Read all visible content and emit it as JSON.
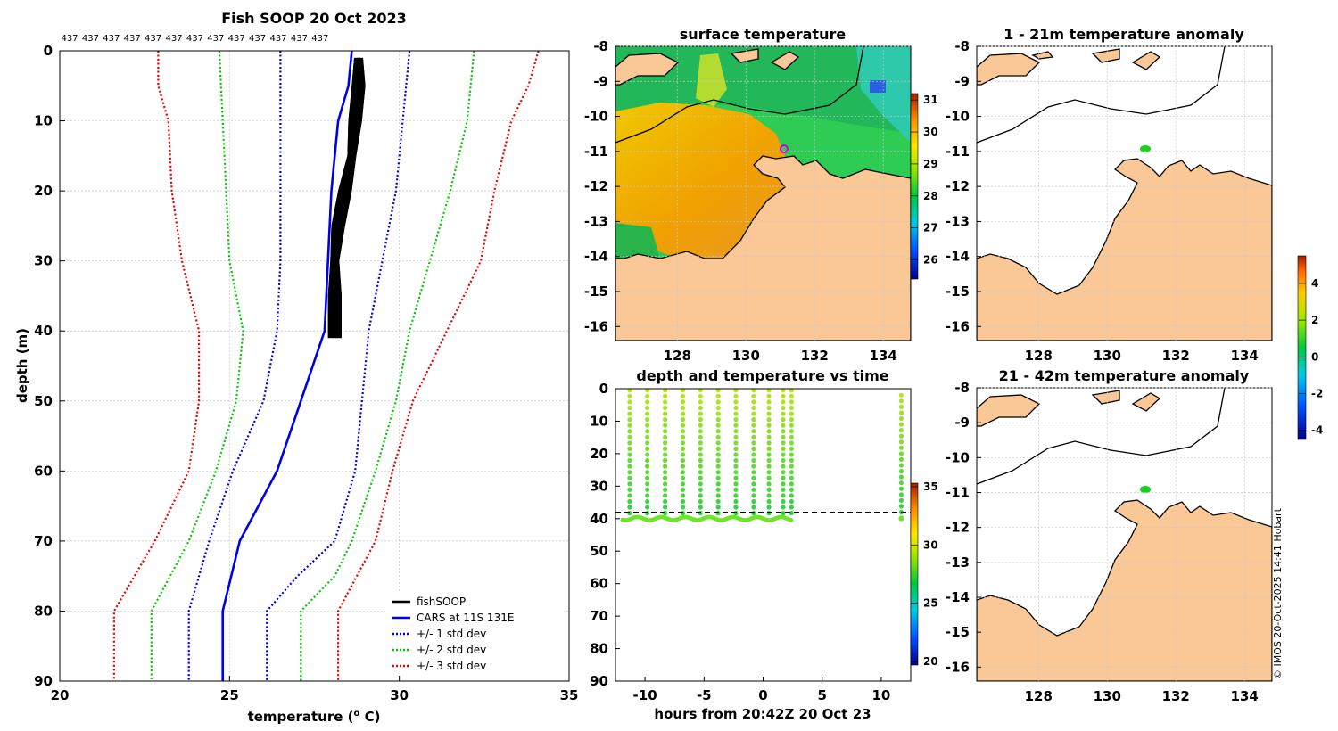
{
  "chart_data": [
    {
      "type": "line",
      "title": "Fish SOOP 20 Oct 2023",
      "xlabel": "temperature (",
      "xlabel_sup": "o",
      "xlabel_end": " C)",
      "ylabel": "depth (m)",
      "xlim": [
        20,
        35
      ],
      "ylim": [
        90,
        0
      ],
      "xticks": [
        "20",
        "25",
        "30",
        "35"
      ],
      "yticks": [
        "0",
        "10",
        "20",
        "30",
        "40",
        "50",
        "60",
        "70",
        "80",
        "90"
      ],
      "top_counts": [
        "437",
        "437",
        "437",
        "437",
        "437",
        "437",
        "437",
        "437",
        "437",
        "437",
        "437",
        "437",
        "437"
      ],
      "legend": [
        "fishSOOP",
        "CARS at 11S 131E",
        "+/- 1 std dev",
        "+/- 2 std dev",
        "+/- 3 std dev"
      ],
      "series": [
        {
          "name": "CARS at 11S 131E",
          "color": "#0000e6",
          "style": "solid",
          "points": [
            [
              28.6,
              0
            ],
            [
              28.5,
              5
            ],
            [
              28.2,
              10
            ],
            [
              28.0,
              20
            ],
            [
              27.9,
              30
            ],
            [
              27.8,
              40
            ],
            [
              27.1,
              50
            ],
            [
              26.4,
              60
            ],
            [
              25.3,
              70
            ],
            [
              24.8,
              80
            ],
            [
              24.8,
              90
            ]
          ]
        },
        {
          "name": "+1 std dev",
          "color": "#0000e6",
          "style": "dot",
          "points": [
            [
              30.3,
              0
            ],
            [
              30.1,
              10
            ],
            [
              29.9,
              20
            ],
            [
              29.5,
              30
            ],
            [
              29.1,
              40
            ],
            [
              28.9,
              50
            ],
            [
              28.7,
              60
            ],
            [
              28.1,
              70
            ],
            [
              27.0,
              75
            ],
            [
              26.1,
              80
            ],
            [
              26.1,
              90
            ]
          ]
        },
        {
          "name": "-1 std dev",
          "color": "#0000e6",
          "style": "dot",
          "points": [
            [
              26.5,
              0
            ],
            [
              26.5,
              10
            ],
            [
              26.5,
              20
            ],
            [
              26.5,
              30
            ],
            [
              26.4,
              40
            ],
            [
              26.0,
              50
            ],
            [
              25.1,
              60
            ],
            [
              24.4,
              70
            ],
            [
              23.8,
              80
            ],
            [
              23.8,
              90
            ]
          ]
        },
        {
          "name": "+2 std dev",
          "color": "#00c800",
          "style": "dot",
          "points": [
            [
              32.2,
              0
            ],
            [
              32.0,
              10
            ],
            [
              31.5,
              20
            ],
            [
              30.9,
              30
            ],
            [
              30.3,
              40
            ],
            [
              29.9,
              50
            ],
            [
              29.3,
              60
            ],
            [
              28.6,
              70
            ],
            [
              28.1,
              75
            ],
            [
              27.1,
              80
            ],
            [
              27.1,
              90
            ]
          ]
        },
        {
          "name": "-2 std dev",
          "color": "#00c800",
          "style": "dot",
          "points": [
            [
              24.7,
              0
            ],
            [
              24.8,
              10
            ],
            [
              24.9,
              20
            ],
            [
              25.0,
              30
            ],
            [
              25.4,
              40
            ],
            [
              25.2,
              50
            ],
            [
              24.6,
              60
            ],
            [
              23.8,
              70
            ],
            [
              22.7,
              80
            ],
            [
              22.7,
              90
            ]
          ]
        },
        {
          "name": "+3 std dev",
          "color": "#e60000",
          "style": "dot",
          "points": [
            [
              34.1,
              0
            ],
            [
              33.8,
              5
            ],
            [
              33.3,
              10
            ],
            [
              32.8,
              20
            ],
            [
              32.4,
              30
            ],
            [
              31.4,
              40
            ],
            [
              30.4,
              50
            ],
            [
              29.8,
              60
            ],
            [
              29.3,
              70
            ],
            [
              28.2,
              80
            ],
            [
              28.2,
              90
            ]
          ]
        },
        {
          "name": "-3 std dev",
          "color": "#e60000",
          "style": "dot",
          "points": [
            [
              22.9,
              0
            ],
            [
              22.9,
              5
            ],
            [
              23.2,
              10
            ],
            [
              23.3,
              20
            ],
            [
              23.6,
              30
            ],
            [
              24.1,
              40
            ],
            [
              24.1,
              50
            ],
            [
              23.8,
              60
            ],
            [
              22.8,
              70
            ],
            [
              21.6,
              80
            ],
            [
              21.6,
              90
            ]
          ]
        },
        {
          "name": "fishSOOP",
          "color": "#000000",
          "style": "solid",
          "points": [
            [
              28.8,
              1
            ],
            [
              28.8,
              5
            ],
            [
              28.7,
              10
            ],
            [
              28.6,
              15
            ],
            [
              28.4,
              20
            ],
            [
              28.2,
              25
            ],
            [
              28.1,
              30
            ],
            [
              28.1,
              35
            ],
            [
              28.1,
              41
            ]
          ]
        }
      ]
    },
    {
      "type": "heatmap",
      "title": "surface temperature",
      "xticks": [
        "128",
        "130",
        "132",
        "134"
      ],
      "yticks": [
        "-8",
        "-9",
        "-10",
        "-11",
        "-12",
        "-13",
        "-14",
        "-15",
        "-16"
      ],
      "colorbar_ticks": [
        "31",
        "30",
        "29",
        "28",
        "27",
        "26"
      ],
      "marker": {
        "lon": 131,
        "lat": -11
      }
    },
    {
      "type": "scatter",
      "title": "depth and temperature vs time",
      "xlabel": "hours from 20:42Z 20 Oct 23",
      "xticks": [
        "-10",
        "-5",
        "0",
        "5",
        "10"
      ],
      "yticks": [
        "0",
        "10",
        "20",
        "30",
        "40",
        "50",
        "60",
        "70",
        "80",
        "90"
      ],
      "xlim": [
        -12.5,
        12.5
      ],
      "ylim": [
        90,
        0
      ],
      "colorbar_ticks": [
        "35",
        "30",
        "25",
        "20"
      ],
      "profile_hours": [
        -11.3,
        -9.8,
        -8.3,
        -6.8,
        -5.3,
        -3.8,
        -2.3,
        -0.8,
        0.5,
        1.7,
        2.4,
        11.7
      ],
      "reference_depth": 38
    },
    {
      "type": "heatmap",
      "title": "1 - 21m temperature anomaly",
      "xticks": [
        "128",
        "130",
        "132",
        "134"
      ],
      "yticks": [
        "-8",
        "-9",
        "-10",
        "-11",
        "-12",
        "-13",
        "-14",
        "-15",
        "-16"
      ],
      "marker": {
        "lon": 131,
        "lat": -11
      }
    },
    {
      "type": "heatmap",
      "title": "21 - 42m temperature anomaly",
      "xticks": [
        "128",
        "130",
        "132",
        "134"
      ],
      "yticks": [
        "-8",
        "-9",
        "-10",
        "-11",
        "-12",
        "-13",
        "-14",
        "-15",
        "-16"
      ],
      "colorbar_ticks": [
        "4",
        "2",
        "0",
        "-2",
        "-4"
      ],
      "marker": {
        "lon": 131,
        "lat": -11
      }
    }
  ],
  "footer": "© IMOS 20-Oct-2025 14:41 Hobart"
}
